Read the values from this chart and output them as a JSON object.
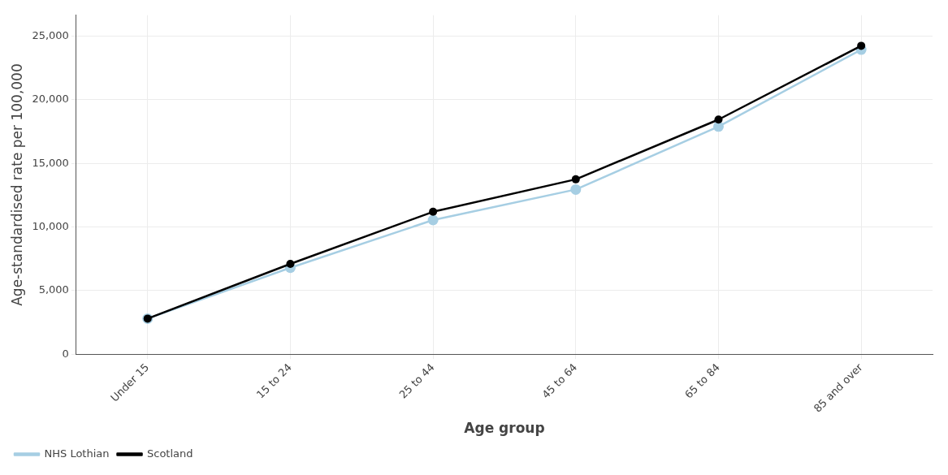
{
  "chart_data": {
    "type": "line",
    "xlabel": "Age group",
    "ylabel": "Age-standardised rate per 100,000",
    "categories": [
      "Under 15",
      "15 to 24",
      "25 to 44",
      "45 to 64",
      "65 to 84",
      "85 and over"
    ],
    "series": [
      {
        "name": "NHS Lothian",
        "color": "#a6cee3",
        "values": [
          2800,
          6800,
          10550,
          12950,
          17900,
          23950
        ]
      },
      {
        "name": "Scotland",
        "color": "#000000",
        "values": [
          2800,
          7100,
          11200,
          13750,
          18450,
          24250
        ]
      }
    ],
    "ylim": [
      0,
      26650
    ],
    "yticks": [
      {
        "value": 0,
        "label": "0"
      },
      {
        "value": 5000,
        "label": "5,000"
      },
      {
        "value": 10000,
        "label": "10,000"
      },
      {
        "value": 15000,
        "label": "15,000"
      },
      {
        "value": 20000,
        "label": "20,000"
      },
      {
        "value": 25000,
        "label": "25,000"
      }
    ],
    "grid": true,
    "legend": "bottom left",
    "marker": "circle",
    "line_style": "solid"
  }
}
